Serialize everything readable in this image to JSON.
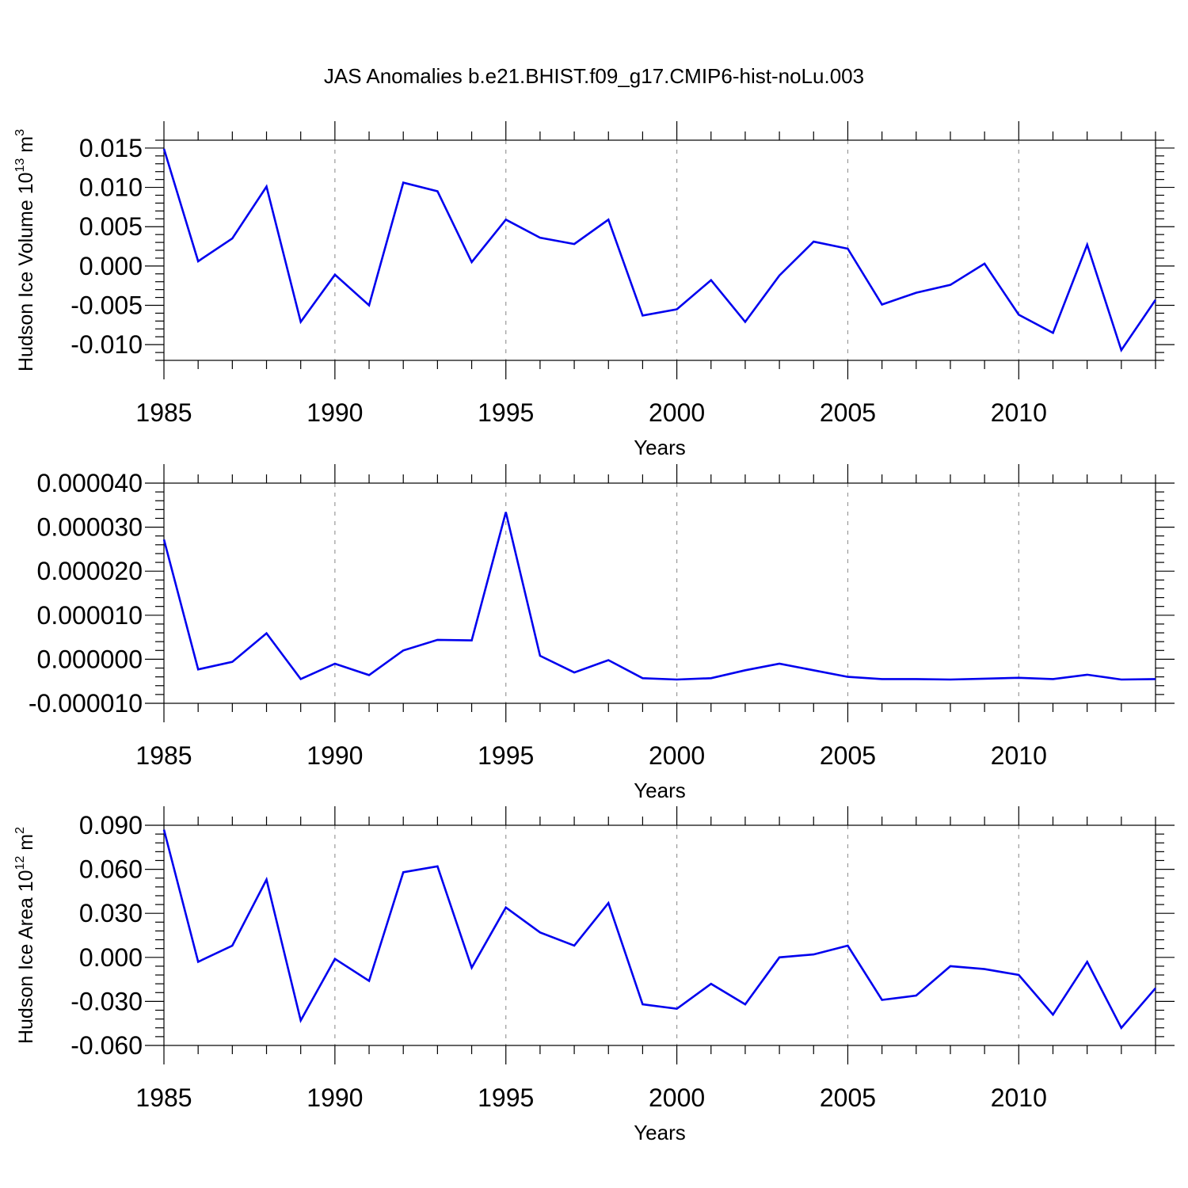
{
  "figure_title": "JAS Anomalies b.e21.BHIST.f09_g17.CMIP6-hist-noLu.003",
  "series_color": "#0000ee",
  "chart_data": [
    {
      "type": "line",
      "title": "JAS Anomalies b.e21.BHIST.f09_g17.CMIP6-hist-noLu.003",
      "xlabel": "Years",
      "ylabel": {
        "text": "Hudson Ice Volume 10",
        "sup": "13",
        "unit": " m",
        "unit_sup": "3"
      },
      "xlim": [
        1985,
        2014
      ],
      "ylim": [
        -0.012,
        0.016
      ],
      "xticks": [
        1985,
        1990,
        1995,
        2000,
        2005,
        2010
      ],
      "xtick_labels": [
        "1985",
        "1990",
        "1995",
        "2000",
        "2005",
        "2010"
      ],
      "yticks": [
        0.015,
        0.01,
        0.005,
        0.0,
        -0.005,
        -0.01
      ],
      "ytick_labels": [
        "0.015",
        "0.010",
        "0.005",
        "0.000",
        "-0.005",
        "-0.010"
      ],
      "x": [
        1985,
        1986,
        1987,
        1988,
        1989,
        1990,
        1991,
        1992,
        1993,
        1994,
        1995,
        1996,
        1997,
        1998,
        1999,
        2000,
        2001,
        2002,
        2003,
        2004,
        2005,
        2006,
        2007,
        2008,
        2009,
        2010,
        2011,
        2012,
        2013,
        2014
      ],
      "values": [
        0.0149,
        0.0006,
        0.0035,
        0.0101,
        -0.0071,
        -0.0011,
        -0.005,
        0.0106,
        0.0095,
        0.0005,
        0.0059,
        0.0036,
        0.0028,
        0.0059,
        -0.0063,
        -0.0055,
        -0.0018,
        -0.0071,
        -0.0012,
        0.0031,
        0.0022,
        -0.0049,
        -0.0034,
        -0.0024,
        0.0003,
        -0.0062,
        -0.0085,
        0.0027,
        -0.0107,
        -0.0043
      ]
    },
    {
      "type": "line",
      "xlabel": "Years",
      "ylabel": null,
      "xlim": [
        1985,
        2014
      ],
      "ylim": [
        -1e-05,
        4e-05
      ],
      "xticks": [
        1985,
        1990,
        1995,
        2000,
        2005,
        2010
      ],
      "xtick_labels": [
        "1985",
        "1990",
        "1995",
        "2000",
        "2005",
        "2010"
      ],
      "yticks": [
        4e-05,
        3e-05,
        2e-05,
        1e-05,
        0.0,
        -1e-05
      ],
      "ytick_labels": [
        "0.000040",
        "0.000030",
        "0.000020",
        "0.000010",
        "0.000000",
        "-0.000010"
      ],
      "x": [
        1985,
        1986,
        1987,
        1988,
        1989,
        1990,
        1991,
        1992,
        1993,
        1994,
        1995,
        1996,
        1997,
        1998,
        1999,
        2000,
        2001,
        2002,
        2003,
        2004,
        2005,
        2006,
        2007,
        2008,
        2009,
        2010,
        2011,
        2012,
        2013,
        2014
      ],
      "values": [
        2.72e-05,
        -2.3e-06,
        -6e-07,
        5.9e-06,
        -4.5e-06,
        -1e-06,
        -3.6e-06,
        2e-06,
        4.4e-06,
        4.3e-06,
        3.34e-05,
        8e-07,
        -3e-06,
        -2e-07,
        -4.3e-06,
        -4.6e-06,
        -4.3e-06,
        -2.5e-06,
        -1e-06,
        -2.5e-06,
        -4e-06,
        -4.5e-06,
        -4.5e-06,
        -4.6e-06,
        -4.4e-06,
        -4.2e-06,
        -4.5e-06,
        -3.5e-06,
        -4.6e-06,
        -4.5e-06
      ]
    },
    {
      "type": "line",
      "xlabel": "Years",
      "ylabel": {
        "text": "Hudson Ice Area 10",
        "sup": "12",
        "unit": " m",
        "unit_sup": "2"
      },
      "xlim": [
        1985,
        2014
      ],
      "ylim": [
        -0.06,
        0.09
      ],
      "xticks": [
        1985,
        1990,
        1995,
        2000,
        2005,
        2010
      ],
      "xtick_labels": [
        "1985",
        "1990",
        "1995",
        "2000",
        "2005",
        "2010"
      ],
      "yticks": [
        0.09,
        0.06,
        0.03,
        0.0,
        -0.03,
        -0.06
      ],
      "ytick_labels": [
        "0.090",
        "0.060",
        "0.030",
        "0.000",
        "-0.030",
        "-0.060"
      ],
      "x": [
        1985,
        1986,
        1987,
        1988,
        1989,
        1990,
        1991,
        1992,
        1993,
        1994,
        1995,
        1996,
        1997,
        1998,
        1999,
        2000,
        2001,
        2002,
        2003,
        2004,
        2005,
        2006,
        2007,
        2008,
        2009,
        2010,
        2011,
        2012,
        2013,
        2014
      ],
      "values": [
        0.087,
        -0.003,
        0.008,
        0.053,
        -0.043,
        -0.001,
        -0.016,
        0.058,
        0.062,
        -0.007,
        0.034,
        0.017,
        0.008,
        0.037,
        -0.032,
        -0.035,
        -0.018,
        -0.032,
        0.0,
        0.002,
        0.008,
        -0.029,
        -0.026,
        -0.006,
        -0.008,
        -0.012,
        -0.039,
        -0.003,
        -0.048,
        -0.021
      ]
    }
  ]
}
